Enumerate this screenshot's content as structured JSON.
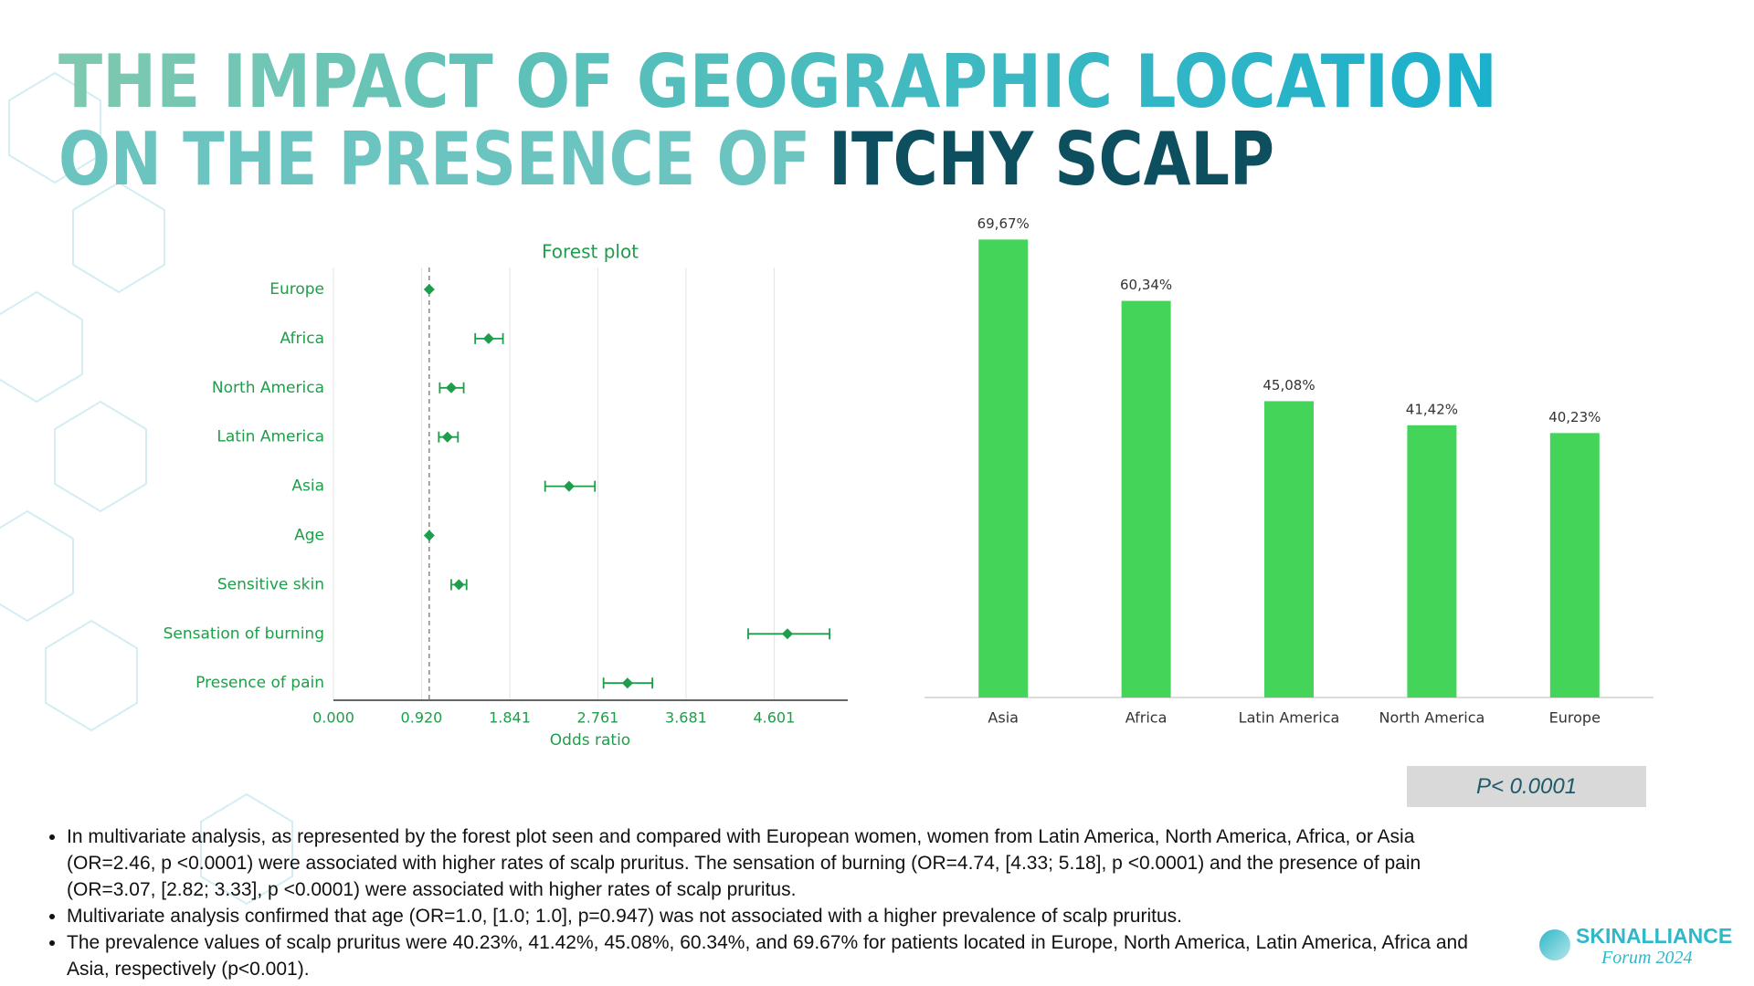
{
  "slide": {
    "title_parts": [
      "THE IMPACT OF GEOGRAPHIC LOCATION",
      "ON THE PRESENCE OF",
      "ITCHY SCALP"
    ],
    "p_value_box": "P< 0.0001",
    "bullets": [
      "In multivariate analysis, as represented by the forest plot seen and compared with European women, women from Latin America, North America, Africa, or Asia (OR=2.46, p <0.0001) were associated with higher rates of scalp pruritus. The sensation of burning (OR=4.74, [4.33; 5.18], p <0.0001) and the presence of pain (OR=3.07, [2.82; 3.33], p <0.0001) were associated with higher rates of scalp pruritus.",
      "Multivariate analysis confirmed that age (OR=1.0, [1.0; 1.0], p=0.947) was not associated with a higher prevalence of scalp pruritus.",
      "The prevalence values of scalp pruritus were 40.23%, 41.42%, 45.08%, 60.34%, and 69.67% for patients located in Europe, North America, Latin America, Africa and Asia, respectively (p<0.001)."
    ],
    "logo": {
      "name": "SKINALLIANCE",
      "subtitle": "Forum 2024"
    }
  },
  "chart_data": [
    {
      "type": "forest",
      "title": "Forest plot",
      "xlabel": "Odds ratio",
      "categories": [
        "Europe",
        "Africa",
        "North America",
        "Latin America",
        "Asia",
        "Age",
        "Sensitive skin",
        "Sensation of burning",
        "Presence of pain"
      ],
      "values": [
        1.0,
        1.62,
        1.23,
        1.19,
        2.46,
        1.0,
        1.31,
        4.74,
        3.07
      ],
      "ci_low": [
        null,
        1.48,
        1.11,
        1.1,
        2.21,
        1.0,
        1.23,
        4.33,
        2.82
      ],
      "ci_high": [
        null,
        1.77,
        1.36,
        1.3,
        2.73,
        1.0,
        1.39,
        5.18,
        3.33
      ],
      "color": "#1e9e4a",
      "xlim": [
        0,
        5.37
      ],
      "xticks": [
        {
          "value": 0,
          "label": "0.000"
        },
        {
          "value": 0.92,
          "label": "0.920"
        },
        {
          "value": 1.841,
          "label": "1.841"
        },
        {
          "value": 2.761,
          "label": "2.761"
        },
        {
          "value": 3.681,
          "label": "3.681"
        },
        {
          "value": 4.601,
          "label": "4.601"
        }
      ],
      "reference_line": 1,
      "grid": true
    },
    {
      "type": "bar",
      "categories": [
        "Asia",
        "Africa",
        "Latin America",
        "North America",
        "Europe"
      ],
      "values": [
        69.67,
        60.34,
        45.08,
        41.42,
        40.23
      ],
      "value_labels": [
        "69,67%",
        "60,34%",
        "45,08%",
        "41,42%",
        "40,23%"
      ],
      "color": "#44d45a",
      "ylim": [
        0,
        70
      ]
    }
  ]
}
